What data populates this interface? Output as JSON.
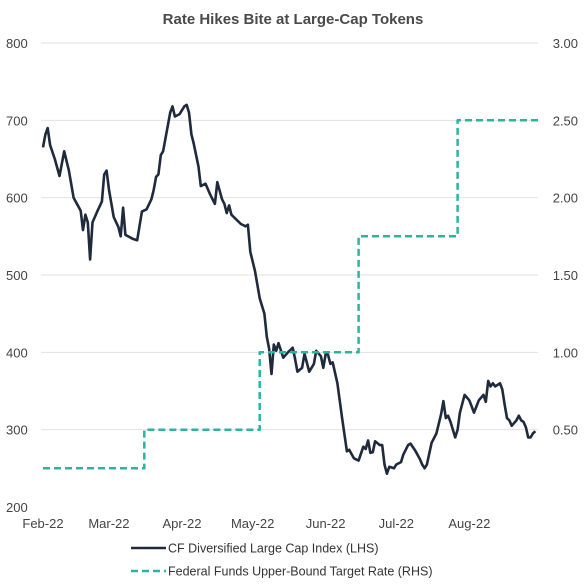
{
  "chart_data": {
    "type": "line",
    "title": "Rate Hikes Bite at Large-Cap Tokens",
    "x_tick_labels": [
      "Feb-22",
      "Mar-22",
      "Apr-22",
      "May-22",
      "Jun-22",
      "Jul-22",
      "Aug-22"
    ],
    "x_range": [
      "2022-02-01",
      "2022-08-31"
    ],
    "y_left": {
      "min": 200,
      "max": 800,
      "ticks": [
        "200",
        "300",
        "400",
        "500",
        "600",
        "700",
        "800"
      ]
    },
    "y_right": {
      "min": 0,
      "max": 3,
      "ticks": [
        "3.00",
        "2.50",
        "2.00",
        "1.50",
        "1.00",
        "0.50"
      ]
    },
    "grid": true,
    "legend_position": "bottom",
    "series": [
      {
        "name": "CF Diversified Large Cap Index (LHS)",
        "axis": "left",
        "color": "#1f2a3c",
        "style": "solid",
        "points": [
          [
            "2022-02-01",
            665
          ],
          [
            "2022-02-02",
            682
          ],
          [
            "2022-02-03",
            690
          ],
          [
            "2022-02-04",
            668
          ],
          [
            "2022-02-06",
            650
          ],
          [
            "2022-02-08",
            628
          ],
          [
            "2022-02-10",
            660
          ],
          [
            "2022-02-12",
            635
          ],
          [
            "2022-02-14",
            600
          ],
          [
            "2022-02-17",
            583
          ],
          [
            "2022-02-18",
            558
          ],
          [
            "2022-02-19",
            578
          ],
          [
            "2022-02-20",
            568
          ],
          [
            "2022-02-21",
            520
          ],
          [
            "2022-02-22",
            568
          ],
          [
            "2022-02-24",
            582
          ],
          [
            "2022-02-26",
            595
          ],
          [
            "2022-02-27",
            630
          ],
          [
            "2022-02-28",
            635
          ],
          [
            "2022-03-01",
            610
          ],
          [
            "2022-03-03",
            575
          ],
          [
            "2022-03-05",
            562
          ],
          [
            "2022-03-06",
            550
          ],
          [
            "2022-03-07",
            587
          ],
          [
            "2022-03-08",
            552
          ],
          [
            "2022-03-11",
            547
          ],
          [
            "2022-03-13",
            545
          ],
          [
            "2022-03-15",
            582
          ],
          [
            "2022-03-17",
            585
          ],
          [
            "2022-03-19",
            598
          ],
          [
            "2022-03-20",
            610
          ],
          [
            "2022-03-21",
            627
          ],
          [
            "2022-03-22",
            630
          ],
          [
            "2022-03-23",
            655
          ],
          [
            "2022-03-24",
            660
          ],
          [
            "2022-03-27",
            710
          ],
          [
            "2022-03-28",
            718
          ],
          [
            "2022-03-29",
            705
          ],
          [
            "2022-03-31",
            708
          ],
          [
            "2022-04-02",
            718
          ],
          [
            "2022-04-03",
            720
          ],
          [
            "2022-04-04",
            710
          ],
          [
            "2022-04-05",
            682
          ],
          [
            "2022-04-06",
            670
          ],
          [
            "2022-04-08",
            640
          ],
          [
            "2022-04-09",
            615
          ],
          [
            "2022-04-11",
            618
          ],
          [
            "2022-04-13",
            604
          ],
          [
            "2022-04-15",
            592
          ],
          [
            "2022-04-16",
            620
          ],
          [
            "2022-04-18",
            598
          ],
          [
            "2022-04-19",
            592
          ],
          [
            "2022-04-20",
            580
          ],
          [
            "2022-04-21",
            590
          ],
          [
            "2022-04-22",
            578
          ],
          [
            "2022-04-24",
            572
          ],
          [
            "2022-04-26",
            566
          ],
          [
            "2022-04-28",
            563
          ],
          [
            "2022-04-29",
            565
          ],
          [
            "2022-04-30",
            530
          ],
          [
            "2022-05-02",
            505
          ],
          [
            "2022-05-04",
            470
          ],
          [
            "2022-05-06",
            450
          ],
          [
            "2022-05-07",
            420
          ],
          [
            "2022-05-08",
            405
          ],
          [
            "2022-05-09",
            372
          ],
          [
            "2022-05-10",
            410
          ],
          [
            "2022-05-11",
            402
          ],
          [
            "2022-05-12",
            412
          ],
          [
            "2022-05-14",
            393
          ],
          [
            "2022-05-16",
            400
          ],
          [
            "2022-05-18",
            406
          ],
          [
            "2022-05-19",
            392
          ],
          [
            "2022-05-20",
            375
          ],
          [
            "2022-05-22",
            380
          ],
          [
            "2022-05-23",
            398
          ],
          [
            "2022-05-24",
            387
          ],
          [
            "2022-05-25",
            375
          ],
          [
            "2022-05-27",
            385
          ],
          [
            "2022-05-28",
            402
          ],
          [
            "2022-05-30",
            395
          ],
          [
            "2022-05-31",
            380
          ],
          [
            "2022-06-01",
            398
          ],
          [
            "2022-06-02",
            397
          ],
          [
            "2022-06-03",
            385
          ],
          [
            "2022-06-04",
            387
          ],
          [
            "2022-06-06",
            360
          ],
          [
            "2022-06-08",
            315
          ],
          [
            "2022-06-10",
            272
          ],
          [
            "2022-06-11",
            274
          ],
          [
            "2022-06-13",
            263
          ],
          [
            "2022-06-15",
            260
          ],
          [
            "2022-06-17",
            278
          ],
          [
            "2022-06-18",
            275
          ],
          [
            "2022-06-19",
            286
          ],
          [
            "2022-06-20",
            270
          ],
          [
            "2022-06-21",
            271
          ],
          [
            "2022-06-22",
            285
          ],
          [
            "2022-06-24",
            280
          ],
          [
            "2022-06-25",
            280
          ],
          [
            "2022-06-26",
            255
          ],
          [
            "2022-06-27",
            243
          ],
          [
            "2022-06-28",
            252
          ],
          [
            "2022-06-30",
            250
          ],
          [
            "2022-07-01",
            255
          ],
          [
            "2022-07-03",
            258
          ],
          [
            "2022-07-04",
            268
          ],
          [
            "2022-07-06",
            280
          ],
          [
            "2022-07-07",
            282
          ],
          [
            "2022-07-09",
            273
          ],
          [
            "2022-07-11",
            262
          ],
          [
            "2022-07-12",
            255
          ],
          [
            "2022-07-13",
            250
          ],
          [
            "2022-07-14",
            255
          ],
          [
            "2022-07-16",
            283
          ],
          [
            "2022-07-18",
            295
          ],
          [
            "2022-07-20",
            320
          ],
          [
            "2022-07-21",
            337
          ],
          [
            "2022-07-22",
            315
          ],
          [
            "2022-07-23",
            318
          ],
          [
            "2022-07-24",
            310
          ],
          [
            "2022-07-26",
            290
          ],
          [
            "2022-07-27",
            300
          ],
          [
            "2022-07-28",
            322
          ],
          [
            "2022-07-30",
            345
          ],
          [
            "2022-08-01",
            338
          ],
          [
            "2022-08-02",
            330
          ],
          [
            "2022-08-03",
            322
          ],
          [
            "2022-08-04",
            330
          ],
          [
            "2022-08-05",
            338
          ],
          [
            "2022-08-07",
            345
          ],
          [
            "2022-08-08",
            336
          ],
          [
            "2022-08-09",
            363
          ],
          [
            "2022-08-10",
            356
          ],
          [
            "2022-08-11",
            360
          ],
          [
            "2022-08-12",
            356
          ],
          [
            "2022-08-14",
            360
          ],
          [
            "2022-08-15",
            352
          ],
          [
            "2022-08-16",
            332
          ],
          [
            "2022-08-17",
            315
          ],
          [
            "2022-08-18",
            312
          ],
          [
            "2022-08-19",
            305
          ],
          [
            "2022-08-21",
            312
          ],
          [
            "2022-08-22",
            318
          ],
          [
            "2022-08-23",
            312
          ],
          [
            "2022-08-24",
            310
          ],
          [
            "2022-08-25",
            303
          ],
          [
            "2022-08-26",
            290
          ],
          [
            "2022-08-27",
            290
          ],
          [
            "2022-08-28",
            295
          ],
          [
            "2022-08-29",
            298
          ]
        ]
      },
      {
        "name": "Federal Funds Upper-Bound Target Rate (RHS)",
        "axis": "right",
        "color": "#2bb5a0",
        "style": "dashed",
        "step": true,
        "points": [
          [
            "2022-02-01",
            0.25
          ],
          [
            "2022-03-16",
            0.25
          ],
          [
            "2022-03-16",
            0.5
          ],
          [
            "2022-05-04",
            0.5
          ],
          [
            "2022-05-04",
            1.0
          ],
          [
            "2022-06-15",
            1.0
          ],
          [
            "2022-06-15",
            1.75
          ],
          [
            "2022-07-27",
            1.75
          ],
          [
            "2022-07-27",
            2.5
          ],
          [
            "2022-08-31",
            2.5
          ]
        ]
      }
    ]
  }
}
